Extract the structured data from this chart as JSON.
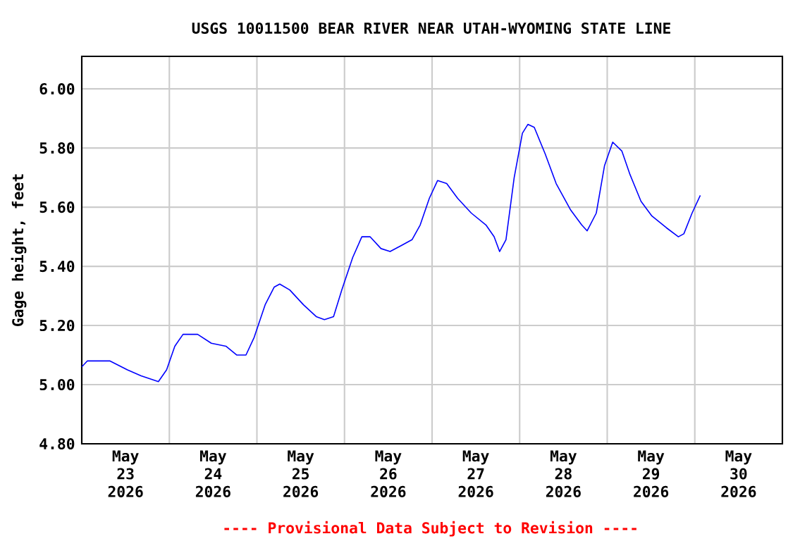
{
  "chart_data": {
    "type": "line",
    "title": "USGS 10011500 BEAR RIVER NEAR UTAH-WYOMING STATE LINE",
    "ylabel": "Gage height, feet",
    "annotations": [
      "---- Provisional Data Subject to Revision ----"
    ],
    "x": [
      "2026-05-23T00:00",
      "2026-05-23T01:30",
      "2026-05-23T07:45",
      "2026-05-23T12:30",
      "2026-05-23T16:15",
      "2026-05-23T21:00",
      "2026-05-23T23:15",
      "2026-05-24T01:30",
      "2026-05-24T03:45",
      "2026-05-24T07:45",
      "2026-05-24T11:30",
      "2026-05-24T15:30",
      "2026-05-24T18:30",
      "2026-05-24T21:00",
      "2026-05-24T23:15",
      "2026-05-25T02:15",
      "2026-05-25T04:45",
      "2026-05-25T06:15",
      "2026-05-25T09:00",
      "2026-05-25T12:45",
      "2026-05-25T16:15",
      "2026-05-25T18:30",
      "2026-05-25T21:00",
      "2026-05-25T23:15",
      "2026-05-26T02:15",
      "2026-05-26T04:45",
      "2026-05-26T07:00",
      "2026-05-26T10:00",
      "2026-05-26T12:30",
      "2026-05-26T15:30",
      "2026-05-26T18:30",
      "2026-05-26T20:45",
      "2026-05-26T23:15",
      "2026-05-27T01:30",
      "2026-05-27T04:00",
      "2026-05-27T07:00",
      "2026-05-27T10:45",
      "2026-05-27T14:45",
      "2026-05-27T17:00",
      "2026-05-27T18:30",
      "2026-05-27T20:15",
      "2026-05-27T22:30",
      "2026-05-28T00:45",
      "2026-05-28T02:15",
      "2026-05-28T04:00",
      "2026-05-28T07:00",
      "2026-05-28T10:00",
      "2026-05-28T14:00",
      "2026-05-28T17:00",
      "2026-05-28T18:30",
      "2026-05-28T21:00",
      "2026-05-28T23:15",
      "2026-05-29T01:30",
      "2026-05-29T04:00",
      "2026-05-29T06:15",
      "2026-05-29T09:15",
      "2026-05-29T12:15",
      "2026-05-29T16:15",
      "2026-05-29T19:30",
      "2026-05-29T21:00",
      "2026-05-29T23:15",
      "2026-05-30T01:30"
    ],
    "values": [
      5.06,
      5.08,
      5.08,
      5.05,
      5.03,
      5.01,
      5.05,
      5.13,
      5.17,
      5.17,
      5.14,
      5.13,
      5.1,
      5.1,
      5.16,
      5.27,
      5.33,
      5.34,
      5.32,
      5.27,
      5.23,
      5.22,
      5.23,
      5.32,
      5.43,
      5.5,
      5.5,
      5.46,
      5.45,
      5.47,
      5.49,
      5.54,
      5.63,
      5.69,
      5.68,
      5.63,
      5.58,
      5.54,
      5.5,
      5.45,
      5.49,
      5.7,
      5.85,
      5.88,
      5.87,
      5.78,
      5.68,
      5.59,
      5.54,
      5.52,
      5.58,
      5.74,
      5.82,
      5.79,
      5.71,
      5.62,
      5.57,
      5.53,
      5.5,
      5.51,
      5.58,
      5.64
    ],
    "color": "#0000ff",
    "xlim": [
      "2026-05-23T00:00",
      "2026-05-31T00:00"
    ],
    "xticks": [
      {
        "value": "2026-05-23T12:00",
        "label": "May 23 2026"
      },
      {
        "value": "2026-05-24T12:00",
        "label": "May 24 2026"
      },
      {
        "value": "2026-05-25T12:00",
        "label": "May 25 2026"
      },
      {
        "value": "2026-05-26T12:00",
        "label": "May 26 2026"
      },
      {
        "value": "2026-05-27T12:00",
        "label": "May 27 2026"
      },
      {
        "value": "2026-05-28T12:00",
        "label": "May 28 2026"
      },
      {
        "value": "2026-05-29T12:00",
        "label": "May 29 2026"
      },
      {
        "value": "2026-05-30T12:00",
        "label": "May 30 2026"
      },
      {
        "value": "2026-05-24T00:00",
        "label": null
      },
      {
        "value": "2026-05-25T00:00",
        "label": null
      },
      {
        "value": "2026-05-26T00:00",
        "label": null
      },
      {
        "value": "2026-05-27T00:00",
        "label": null
      },
      {
        "value": "2026-05-28T00:00",
        "label": null
      },
      {
        "value": "2026-05-29T00:00",
        "label": null
      },
      {
        "value": "2026-05-30T00:00",
        "label": null
      }
    ],
    "ylim": [
      4.8,
      6.11
    ],
    "yticks": [
      {
        "value": 4.8,
        "label": "4.80"
      },
      {
        "value": 5.0,
        "label": "5.00"
      },
      {
        "value": 5.2,
        "label": "5.20"
      },
      {
        "value": 5.4,
        "label": "5.40"
      },
      {
        "value": 5.6,
        "label": "5.60"
      },
      {
        "value": 5.8,
        "label": "5.80"
      },
      {
        "value": 6.0,
        "label": "6.00"
      }
    ],
    "grid": true
  }
}
